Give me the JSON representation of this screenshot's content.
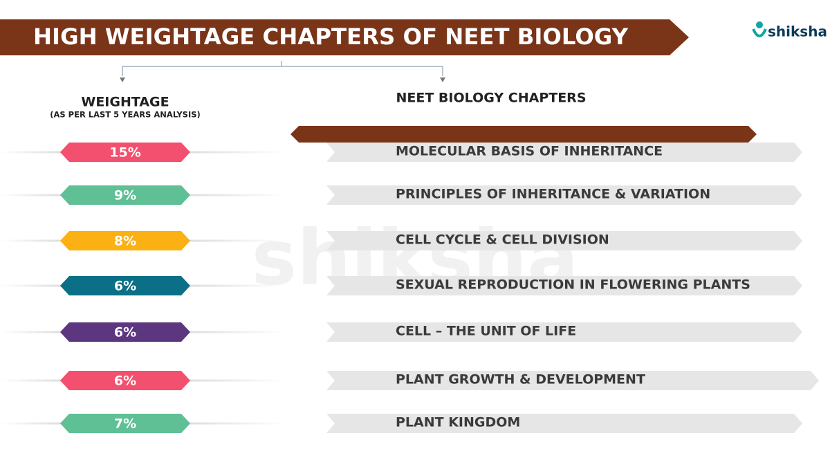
{
  "header": {
    "title": "HIGH WEIGHTAGE CHAPTERS OF NEET BIOLOGY",
    "logo": "shiksha",
    "watermark": "shiksha"
  },
  "columns": {
    "weightage": {
      "title": "WEIGHTAGE",
      "subtitle": "(AS PER LAST 5 YEARS ANALYSIS)"
    },
    "chapters": {
      "title": "NEET BIOLOGY CHAPTERS"
    }
  },
  "rows": [
    {
      "weightage": "15%",
      "chapter": "MOLECULAR BASIS OF INHERITANCE",
      "color": "#f2506e"
    },
    {
      "weightage": "9%",
      "chapter": "PRINCIPLES OF INHERITANCE & VARIATION",
      "color": "#5fc095"
    },
    {
      "weightage": "8%",
      "chapter": "CELL CYCLE & CELL DIVISION",
      "color": "#fbb014"
    },
    {
      "weightage": "6%",
      "chapter": "SEXUAL REPRODUCTION IN FLOWERING PLANTS",
      "color": "#0b6f87"
    },
    {
      "weightage": "6%",
      "chapter": "CELL – THE UNIT OF LIFE",
      "color": "#5d3680"
    },
    {
      "weightage": "6%",
      "chapter": "PLANT GROWTH & DEVELOPMENT",
      "color": "#f2506e"
    },
    {
      "weightage": "7%",
      "chapter": "PLANT KINGDOM",
      "color": "#5fc095"
    }
  ]
}
